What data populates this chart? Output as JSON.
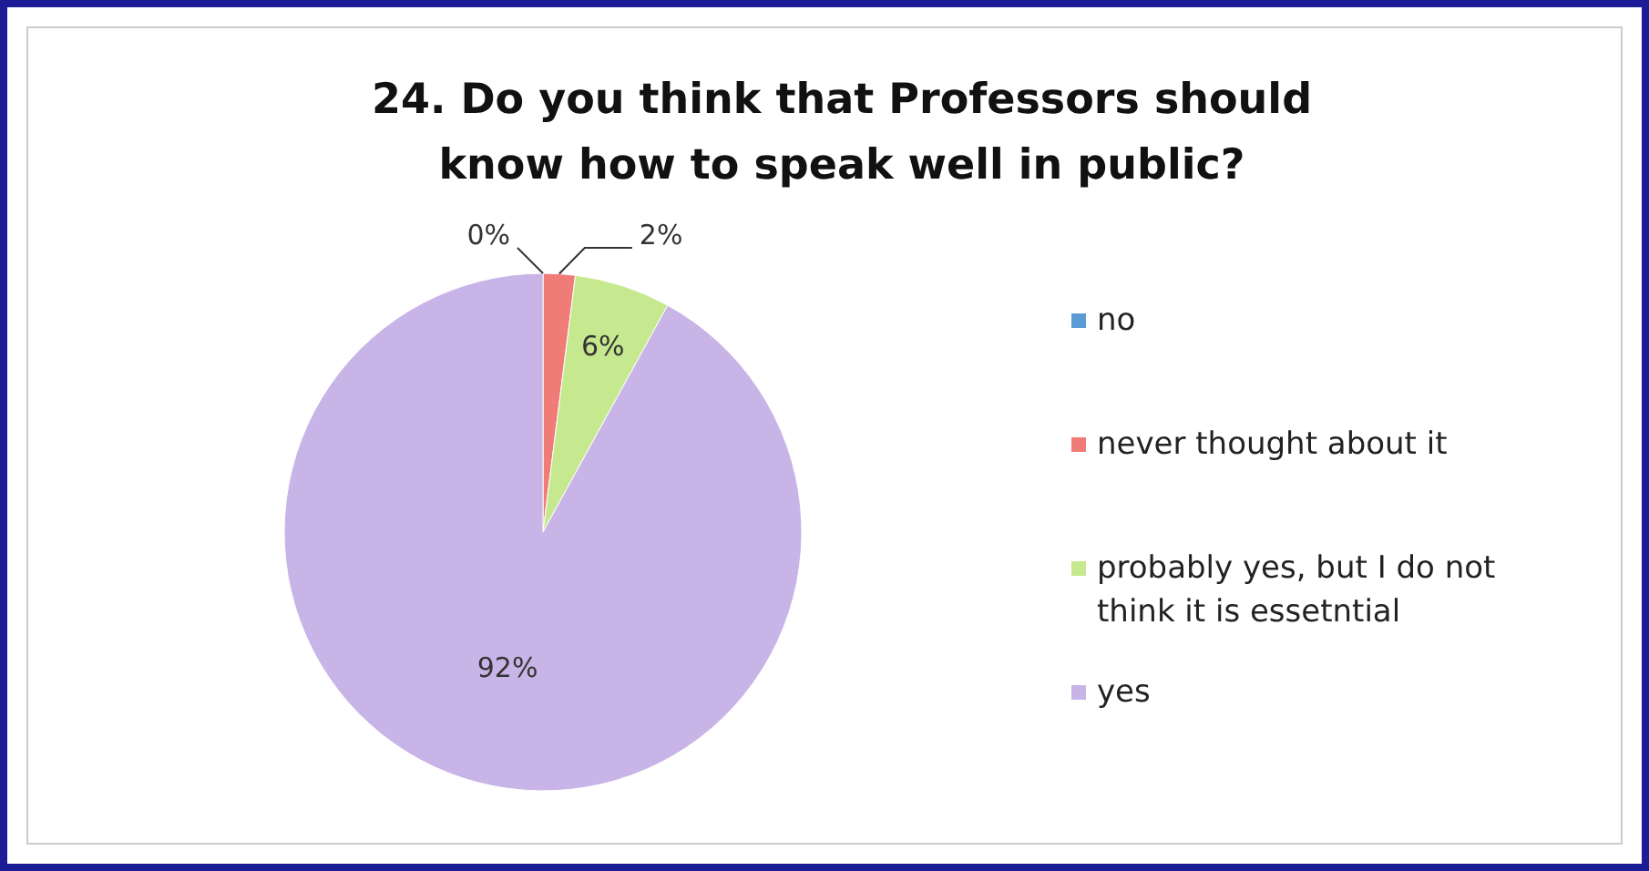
{
  "chart_data": {
    "type": "pie",
    "title": "24. Do you think that Professors should know how to speak well in public?",
    "categories": [
      "no",
      "never thought about it",
      "probably yes, but I do not think it is essetntial",
      "yes"
    ],
    "values": [
      0,
      2,
      6,
      92
    ],
    "colors": [
      "#5b9bd5",
      "#f07c78",
      "#c6e88e",
      "#c8b4e6"
    ],
    "value_labels": [
      "0%",
      "2%",
      "6%",
      "92%"
    ],
    "legend": "right"
  }
}
